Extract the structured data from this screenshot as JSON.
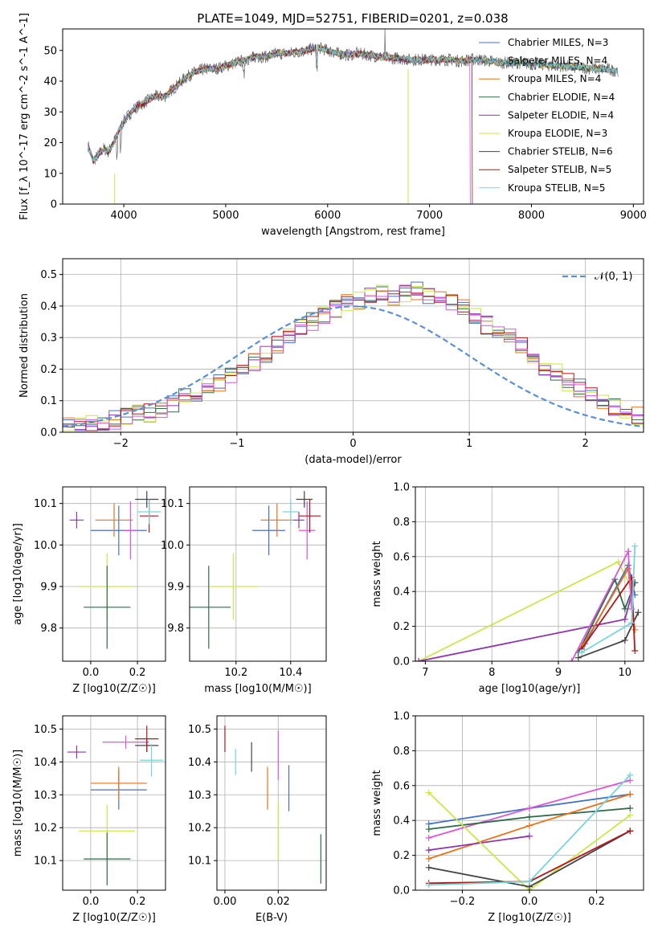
{
  "figure": {
    "title": "PLATE=1049, MJD=52751, FIBERID=0201, z=0.038"
  },
  "chart_data": [
    {
      "id": "spectrum",
      "type": "line",
      "title": "PLATE=1049, MJD=52751, FIBERID=0201, z=0.038",
      "xlabel": "wavelength [Angstrom, rest frame]",
      "ylabel": "Flux [f_λ 10^-17 erg cm^-2 s^-1 A^-1]",
      "xlim": [
        3400,
        9100
      ],
      "ylim": [
        0,
        57
      ],
      "xticks": [
        4000,
        5000,
        6000,
        7000,
        8000,
        9000
      ],
      "yticks": [
        0,
        10,
        20,
        30,
        40,
        50
      ],
      "grid": false,
      "legend_position": "top-right",
      "continuum": {
        "x": [
          3650,
          3700,
          3750,
          3800,
          3850,
          3900,
          3950,
          4000,
          4100,
          4200,
          4300,
          4400,
          4500,
          4600,
          4700,
          4800,
          4900,
          5000,
          5100,
          5200,
          5300,
          5400,
          5500,
          5600,
          5700,
          5800,
          5900,
          6000,
          6100,
          6200,
          6300,
          6400,
          6500,
          6600,
          6700,
          6800,
          6900,
          7000,
          7100,
          7200,
          7300,
          7400,
          7500,
          7600,
          7700,
          7800,
          7900,
          8000,
          8100,
          8200,
          8300,
          8400,
          8500,
          8600,
          8700,
          8800,
          8850
        ],
        "y": [
          19,
          14,
          16,
          18,
          17,
          20,
          24,
          27,
          31,
          33,
          35,
          35,
          38,
          41,
          43,
          44,
          44,
          45,
          46,
          47,
          48,
          48,
          49,
          49,
          49.5,
          50,
          51,
          50,
          49,
          48.5,
          49,
          48.5,
          48,
          47.5,
          47.5,
          47,
          47,
          47,
          47,
          47,
          46.5,
          47,
          47,
          46.5,
          46,
          46,
          46,
          45.5,
          45.5,
          45,
          45,
          44.5,
          44.5,
          44,
          44,
          43.5,
          43.5
        ]
      },
      "series": [
        {
          "name": "Chabrier MILES, N_SSP=3",
          "color": "#4472c4"
        },
        {
          "name": "Salpeter MILES, N_SSP=4",
          "color": "#d957d9"
        },
        {
          "name": "Kroupa MILES, N_SSP=4",
          "color": "#e8721c"
        },
        {
          "name": "Chabrier ELODIE, N_SSP=4",
          "color": "#2e6b4a"
        },
        {
          "name": "Salpeter ELODIE, N_SSP=4",
          "color": "#8e35ad"
        },
        {
          "name": "Kroupa ELODIE, N_SSP=3",
          "color": "#cce647"
        },
        {
          "name": "Chabrier STELIB, N_SSP=6",
          "color": "#444444"
        },
        {
          "name": "Salpeter STELIB, N_SSP=5",
          "color": "#b01818"
        },
        {
          "name": "Kroupa STELIB, N_SSP=5",
          "color": "#7ad3dc"
        }
      ]
    },
    {
      "id": "residuals",
      "type": "line",
      "xlabel": "(data-model)/error",
      "ylabel": "Normed distribution",
      "xlim": [
        -2.5,
        2.5
      ],
      "ylim": [
        0,
        0.55
      ],
      "xticks": [
        -2,
        -1,
        0,
        1,
        2
      ],
      "yticks": [
        0.0,
        0.1,
        0.2,
        0.3,
        0.4,
        0.5
      ],
      "grid": true,
      "legend_position": "top-right",
      "gaussian_label": "𝒩(0, 1)",
      "bin_width": 0.1,
      "bin_start": -2.5,
      "series_colors": [
        "#4472c4",
        "#e8721c",
        "#2e6b4a",
        "#8e35ad",
        "#cce647",
        "#b01818",
        "#d957d9"
      ],
      "histogram_seed": [
        0.02,
        0.02,
        0.03,
        0.03,
        0.04,
        0.05,
        0.06,
        0.06,
        0.07,
        0.09,
        0.11,
        0.12,
        0.14,
        0.16,
        0.18,
        0.2,
        0.22,
        0.25,
        0.28,
        0.3,
        0.33,
        0.35,
        0.37,
        0.39,
        0.41,
        0.42,
        0.43,
        0.44,
        0.43,
        0.44,
        0.45,
        0.43,
        0.42,
        0.41,
        0.39,
        0.37,
        0.34,
        0.32,
        0.3,
        0.27,
        0.24,
        0.21,
        0.19,
        0.16,
        0.14,
        0.12,
        0.1,
        0.08,
        0.07,
        0.05
      ]
    },
    {
      "id": "age_vs_Z",
      "type": "scatter",
      "xlabel": "Z [log10(Z/Z☉)]",
      "ylabel": "age [log10(age/yr)]",
      "xlim": [
        -0.12,
        0.32
      ],
      "ylim": [
        9.72,
        10.14
      ],
      "xticks": [
        0.0,
        0.2
      ],
      "yticks": [
        9.8,
        9.9,
        10.0,
        10.1
      ],
      "grid": true,
      "points": [
        {
          "x": -0.06,
          "y": 10.06,
          "xerr": 0.03,
          "yerr": 0.02,
          "color": "#8e35ad"
        },
        {
          "x": 0.12,
          "y": 10.035,
          "xerr": 0.12,
          "yerr": 0.06,
          "color": "#4472c4"
        },
        {
          "x": 0.1,
          "y": 10.06,
          "xerr": 0.08,
          "yerr": 0.04,
          "color": "#e8721c"
        },
        {
          "x": 0.17,
          "y": 10.035,
          "xerr": 0.03,
          "yerr": 0.07,
          "color": "#d957d9"
        },
        {
          "x": 0.24,
          "y": 10.11,
          "xerr": 0.05,
          "yerr": 0.02,
          "color": "#444444"
        },
        {
          "x": 0.25,
          "y": 10.07,
          "xerr": 0.04,
          "yerr": 0.04,
          "color": "#b01818"
        },
        {
          "x": 0.25,
          "y": 10.08,
          "xerr": 0.05,
          "yerr": 0.03,
          "color": "#7ad3dc"
        },
        {
          "x": 0.07,
          "y": 9.9,
          "xerr": 0.12,
          "yerr": 0.08,
          "color": "#cce647"
        },
        {
          "x": 0.07,
          "y": 9.85,
          "xerr": 0.1,
          "yerr": 0.1,
          "color": "#2e6b4a"
        }
      ]
    },
    {
      "id": "age_vs_mass",
      "type": "scatter",
      "xlabel": "mass [log10(M/M☉)]",
      "ylabel": "",
      "xlim": [
        10.03,
        10.53
      ],
      "ylim": [
        9.72,
        10.14
      ],
      "xticks": [
        10.2,
        10.4
      ],
      "yticks": [
        9.8,
        9.9,
        10.0,
        10.1
      ],
      "grid": true,
      "points": [
        {
          "x": 10.32,
          "y": 10.035,
          "xerr": 0.06,
          "yerr": 0.06,
          "color": "#4472c4"
        },
        {
          "x": 10.35,
          "y": 10.06,
          "xerr": 0.06,
          "yerr": 0.04,
          "color": "#e8721c"
        },
        {
          "x": 10.43,
          "y": 10.06,
          "xerr": 0.02,
          "yerr": 0.02,
          "color": "#8e35ad"
        },
        {
          "x": 10.46,
          "y": 10.035,
          "xerr": 0.03,
          "yerr": 0.07,
          "color": "#d957d9"
        },
        {
          "x": 10.45,
          "y": 10.11,
          "xerr": 0.03,
          "yerr": 0.02,
          "color": "#444444"
        },
        {
          "x": 10.47,
          "y": 10.07,
          "xerr": 0.04,
          "yerr": 0.04,
          "color": "#b01818"
        },
        {
          "x": 10.4,
          "y": 10.08,
          "xerr": 0.03,
          "yerr": 0.03,
          "color": "#7ad3dc"
        },
        {
          "x": 10.19,
          "y": 9.9,
          "xerr": 0.09,
          "yerr": 0.08,
          "color": "#cce647"
        },
        {
          "x": 10.1,
          "y": 9.85,
          "xerr": 0.08,
          "yerr": 0.1,
          "color": "#2e6b4a"
        }
      ]
    },
    {
      "id": "weight_vs_age",
      "type": "line",
      "xlabel": "age [log10(age/yr)]",
      "ylabel": "mass weight",
      "xlim": [
        6.85,
        10.28
      ],
      "ylim": [
        0,
        1
      ],
      "xticks": [
        7,
        8,
        9,
        10
      ],
      "yticks": [
        0.0,
        0.2,
        0.4,
        0.6,
        0.8,
        1.0
      ],
      "grid": true,
      "series": [
        {
          "color": "#cce647",
          "x": [
            6.9,
            9.9,
            10.1
          ],
          "y": [
            0.0,
            0.57,
            0.42
          ]
        },
        {
          "color": "#8e35ad",
          "x": [
            6.9,
            10.0,
            10.15
          ],
          "y": [
            0.0,
            0.24,
            0.45
          ]
        },
        {
          "color": "#2e6b4a",
          "x": [
            9.3,
            9.85,
            10.0,
            10.15
          ],
          "y": [
            0.05,
            0.47,
            0.3,
            0.45
          ]
        },
        {
          "color": "#444444",
          "x": [
            9.3,
            10.0,
            10.2
          ],
          "y": [
            0.02,
            0.12,
            0.28
          ]
        },
        {
          "color": "#4472c4",
          "x": [
            9.4,
            10.05,
            10.15
          ],
          "y": [
            0.1,
            0.55,
            0.38
          ]
        },
        {
          "color": "#e8721c",
          "x": [
            9.35,
            10.05,
            10.15
          ],
          "y": [
            0.08,
            0.53,
            0.18
          ]
        },
        {
          "color": "#b01818",
          "x": [
            9.35,
            10.1,
            10.15
          ],
          "y": [
            0.07,
            0.48,
            0.06
          ]
        },
        {
          "color": "#d957d9",
          "x": [
            9.2,
            10.05,
            10.1
          ],
          "y": [
            0.0,
            0.63,
            0.3
          ]
        },
        {
          "color": "#7ad3dc",
          "x": [
            9.35,
            10.1,
            10.15
          ],
          "y": [
            0.05,
            0.22,
            0.66
          ]
        }
      ]
    },
    {
      "id": "mass_vs_Z",
      "type": "scatter",
      "xlabel": "Z [log10(Z/Z☉)]",
      "ylabel": "mass [log10(M/M☉)]",
      "xlim": [
        -0.12,
        0.32
      ],
      "ylim": [
        10.01,
        10.54
      ],
      "xticks": [
        0.0,
        0.2
      ],
      "yticks": [
        10.1,
        10.2,
        10.3,
        10.4,
        10.5
      ],
      "grid": true,
      "points": [
        {
          "x": -0.06,
          "y": 10.43,
          "xerr": 0.04,
          "yerr": 0.02,
          "color": "#8e35ad"
        },
        {
          "x": 0.12,
          "y": 10.315,
          "xerr": 0.12,
          "yerr": 0.06,
          "color": "#4472c4"
        },
        {
          "x": 0.12,
          "y": 10.335,
          "xerr": 0.12,
          "yerr": 0.05,
          "color": "#e8721c"
        },
        {
          "x": 0.15,
          "y": 10.46,
          "xerr": 0.1,
          "yerr": 0.02,
          "color": "#d957d9"
        },
        {
          "x": 0.24,
          "y": 10.45,
          "xerr": 0.05,
          "yerr": 0.02,
          "color": "#444444"
        },
        {
          "x": 0.24,
          "y": 10.47,
          "xerr": 0.05,
          "yerr": 0.04,
          "color": "#b01818"
        },
        {
          "x": 0.26,
          "y": 10.405,
          "xerr": 0.05,
          "yerr": 0.05,
          "color": "#7ad3dc"
        },
        {
          "x": 0.07,
          "y": 10.19,
          "xerr": 0.12,
          "yerr": 0.08,
          "color": "#cce647"
        },
        {
          "x": 0.07,
          "y": 10.105,
          "xerr": 0.1,
          "yerr": 0.08,
          "color": "#2e6b4a"
        }
      ]
    },
    {
      "id": "mass_vs_ebv",
      "type": "scatter",
      "xlabel": "E(B-V)",
      "ylabel": "",
      "xlim": [
        -0.003,
        0.038
      ],
      "ylim": [
        10.01,
        10.54
      ],
      "xticks": [
        0.0,
        0.02
      ],
      "yticks": [
        10.1,
        10.2,
        10.3,
        10.4,
        10.5
      ],
      "grid": true,
      "points": [
        {
          "x": 0.0,
          "y": 10.47,
          "yerr": 0.04,
          "color": "#b01818"
        },
        {
          "x": 0.004,
          "y": 10.4,
          "yerr": 0.04,
          "color": "#7ad3dc"
        },
        {
          "x": 0.01,
          "y": 10.415,
          "yerr": 0.045,
          "color": "#444444"
        },
        {
          "x": 0.016,
          "y": 10.32,
          "yerr": 0.065,
          "color": "#e8721c"
        },
        {
          "x": 0.02,
          "y": 10.42,
          "yerr": 0.075,
          "color": "#d957d9"
        },
        {
          "x": 0.02,
          "y": 10.19,
          "yerr": 0.09,
          "color": "#cce647"
        },
        {
          "x": 0.024,
          "y": 10.32,
          "yerr": 0.07,
          "color": "#4472c4"
        },
        {
          "x": 0.036,
          "y": 10.105,
          "yerr": 0.075,
          "color": "#2e6b4a"
        }
      ]
    },
    {
      "id": "weight_vs_Z",
      "type": "line",
      "xlabel": "Z [log10(Z/Z☉)]",
      "ylabel": "mass weight",
      "xlim": [
        -0.34,
        0.34
      ],
      "ylim": [
        0,
        1
      ],
      "xticks": [
        -0.2,
        0.0,
        0.2
      ],
      "yticks": [
        0.0,
        0.2,
        0.4,
        0.6,
        0.8,
        1.0
      ],
      "grid": true,
      "series": [
        {
          "color": "#4472c4",
          "x": [
            -0.3,
            0.0,
            0.3
          ],
          "y": [
            0.38,
            0.47,
            0.55
          ]
        },
        {
          "color": "#d957d9",
          "x": [
            -0.3,
            0.0,
            0.3
          ],
          "y": [
            0.3,
            0.47,
            0.63
          ]
        },
        {
          "color": "#2e6b4a",
          "x": [
            -0.3,
            0.0,
            0.3
          ],
          "y": [
            0.35,
            0.42,
            0.47
          ]
        },
        {
          "color": "#e8721c",
          "x": [
            -0.3,
            0.0,
            0.3
          ],
          "y": [
            0.18,
            0.37,
            0.55
          ]
        },
        {
          "color": "#8e35ad",
          "x": [
            -0.3,
            0.0
          ],
          "y": [
            0.23,
            0.31
          ]
        },
        {
          "color": "#cce647",
          "x": [
            -0.3,
            0.0,
            0.3
          ],
          "y": [
            0.56,
            0.0,
            0.43
          ]
        },
        {
          "color": "#444444",
          "x": [
            -0.3,
            0.0,
            0.3
          ],
          "y": [
            0.13,
            0.02,
            0.34
          ]
        },
        {
          "color": "#b01818",
          "x": [
            -0.3,
            0.0,
            0.3
          ],
          "y": [
            0.04,
            0.05,
            0.34
          ]
        },
        {
          "color": "#7ad3dc",
          "x": [
            -0.3,
            0.0,
            0.3
          ],
          "y": [
            0.03,
            0.05,
            0.66
          ]
        }
      ]
    }
  ]
}
